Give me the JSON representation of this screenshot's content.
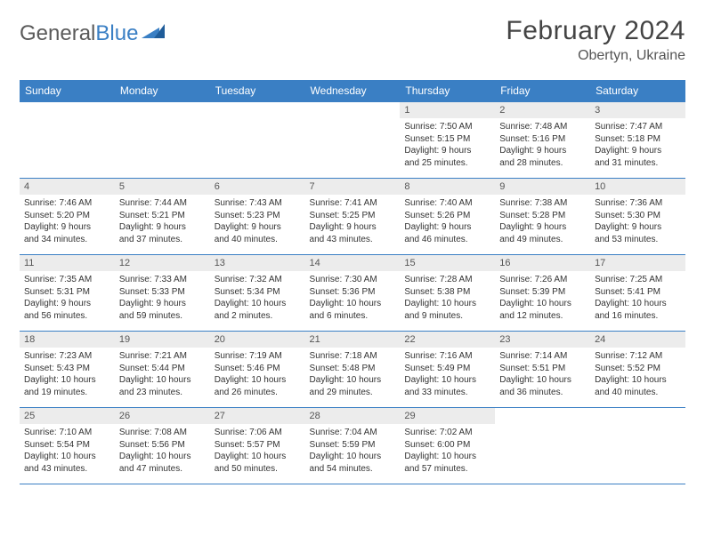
{
  "logo": {
    "part1": "General",
    "part2": "Blue"
  },
  "title": "February 2024",
  "location": "Obertyn, Ukraine",
  "colors": {
    "header_bg": "#3a7fc4",
    "header_text": "#ffffff",
    "daynum_bg": "#ececec",
    "border": "#3a7fc4",
    "text": "#333333",
    "background": "#ffffff"
  },
  "weekdays": [
    "Sunday",
    "Monday",
    "Tuesday",
    "Wednesday",
    "Thursday",
    "Friday",
    "Saturday"
  ],
  "weeks": [
    [
      null,
      null,
      null,
      null,
      {
        "n": "1",
        "sunrise": "Sunrise: 7:50 AM",
        "sunset": "Sunset: 5:15 PM",
        "day1": "Daylight: 9 hours",
        "day2": "and 25 minutes."
      },
      {
        "n": "2",
        "sunrise": "Sunrise: 7:48 AM",
        "sunset": "Sunset: 5:16 PM",
        "day1": "Daylight: 9 hours",
        "day2": "and 28 minutes."
      },
      {
        "n": "3",
        "sunrise": "Sunrise: 7:47 AM",
        "sunset": "Sunset: 5:18 PM",
        "day1": "Daylight: 9 hours",
        "day2": "and 31 minutes."
      }
    ],
    [
      {
        "n": "4",
        "sunrise": "Sunrise: 7:46 AM",
        "sunset": "Sunset: 5:20 PM",
        "day1": "Daylight: 9 hours",
        "day2": "and 34 minutes."
      },
      {
        "n": "5",
        "sunrise": "Sunrise: 7:44 AM",
        "sunset": "Sunset: 5:21 PM",
        "day1": "Daylight: 9 hours",
        "day2": "and 37 minutes."
      },
      {
        "n": "6",
        "sunrise": "Sunrise: 7:43 AM",
        "sunset": "Sunset: 5:23 PM",
        "day1": "Daylight: 9 hours",
        "day2": "and 40 minutes."
      },
      {
        "n": "7",
        "sunrise": "Sunrise: 7:41 AM",
        "sunset": "Sunset: 5:25 PM",
        "day1": "Daylight: 9 hours",
        "day2": "and 43 minutes."
      },
      {
        "n": "8",
        "sunrise": "Sunrise: 7:40 AM",
        "sunset": "Sunset: 5:26 PM",
        "day1": "Daylight: 9 hours",
        "day2": "and 46 minutes."
      },
      {
        "n": "9",
        "sunrise": "Sunrise: 7:38 AM",
        "sunset": "Sunset: 5:28 PM",
        "day1": "Daylight: 9 hours",
        "day2": "and 49 minutes."
      },
      {
        "n": "10",
        "sunrise": "Sunrise: 7:36 AM",
        "sunset": "Sunset: 5:30 PM",
        "day1": "Daylight: 9 hours",
        "day2": "and 53 minutes."
      }
    ],
    [
      {
        "n": "11",
        "sunrise": "Sunrise: 7:35 AM",
        "sunset": "Sunset: 5:31 PM",
        "day1": "Daylight: 9 hours",
        "day2": "and 56 minutes."
      },
      {
        "n": "12",
        "sunrise": "Sunrise: 7:33 AM",
        "sunset": "Sunset: 5:33 PM",
        "day1": "Daylight: 9 hours",
        "day2": "and 59 minutes."
      },
      {
        "n": "13",
        "sunrise": "Sunrise: 7:32 AM",
        "sunset": "Sunset: 5:34 PM",
        "day1": "Daylight: 10 hours",
        "day2": "and 2 minutes."
      },
      {
        "n": "14",
        "sunrise": "Sunrise: 7:30 AM",
        "sunset": "Sunset: 5:36 PM",
        "day1": "Daylight: 10 hours",
        "day2": "and 6 minutes."
      },
      {
        "n": "15",
        "sunrise": "Sunrise: 7:28 AM",
        "sunset": "Sunset: 5:38 PM",
        "day1": "Daylight: 10 hours",
        "day2": "and 9 minutes."
      },
      {
        "n": "16",
        "sunrise": "Sunrise: 7:26 AM",
        "sunset": "Sunset: 5:39 PM",
        "day1": "Daylight: 10 hours",
        "day2": "and 12 minutes."
      },
      {
        "n": "17",
        "sunrise": "Sunrise: 7:25 AM",
        "sunset": "Sunset: 5:41 PM",
        "day1": "Daylight: 10 hours",
        "day2": "and 16 minutes."
      }
    ],
    [
      {
        "n": "18",
        "sunrise": "Sunrise: 7:23 AM",
        "sunset": "Sunset: 5:43 PM",
        "day1": "Daylight: 10 hours",
        "day2": "and 19 minutes."
      },
      {
        "n": "19",
        "sunrise": "Sunrise: 7:21 AM",
        "sunset": "Sunset: 5:44 PM",
        "day1": "Daylight: 10 hours",
        "day2": "and 23 minutes."
      },
      {
        "n": "20",
        "sunrise": "Sunrise: 7:19 AM",
        "sunset": "Sunset: 5:46 PM",
        "day1": "Daylight: 10 hours",
        "day2": "and 26 minutes."
      },
      {
        "n": "21",
        "sunrise": "Sunrise: 7:18 AM",
        "sunset": "Sunset: 5:48 PM",
        "day1": "Daylight: 10 hours",
        "day2": "and 29 minutes."
      },
      {
        "n": "22",
        "sunrise": "Sunrise: 7:16 AM",
        "sunset": "Sunset: 5:49 PM",
        "day1": "Daylight: 10 hours",
        "day2": "and 33 minutes."
      },
      {
        "n": "23",
        "sunrise": "Sunrise: 7:14 AM",
        "sunset": "Sunset: 5:51 PM",
        "day1": "Daylight: 10 hours",
        "day2": "and 36 minutes."
      },
      {
        "n": "24",
        "sunrise": "Sunrise: 7:12 AM",
        "sunset": "Sunset: 5:52 PM",
        "day1": "Daylight: 10 hours",
        "day2": "and 40 minutes."
      }
    ],
    [
      {
        "n": "25",
        "sunrise": "Sunrise: 7:10 AM",
        "sunset": "Sunset: 5:54 PM",
        "day1": "Daylight: 10 hours",
        "day2": "and 43 minutes."
      },
      {
        "n": "26",
        "sunrise": "Sunrise: 7:08 AM",
        "sunset": "Sunset: 5:56 PM",
        "day1": "Daylight: 10 hours",
        "day2": "and 47 minutes."
      },
      {
        "n": "27",
        "sunrise": "Sunrise: 7:06 AM",
        "sunset": "Sunset: 5:57 PM",
        "day1": "Daylight: 10 hours",
        "day2": "and 50 minutes."
      },
      {
        "n": "28",
        "sunrise": "Sunrise: 7:04 AM",
        "sunset": "Sunset: 5:59 PM",
        "day1": "Daylight: 10 hours",
        "day2": "and 54 minutes."
      },
      {
        "n": "29",
        "sunrise": "Sunrise: 7:02 AM",
        "sunset": "Sunset: 6:00 PM",
        "day1": "Daylight: 10 hours",
        "day2": "and 57 minutes."
      },
      null,
      null
    ]
  ]
}
